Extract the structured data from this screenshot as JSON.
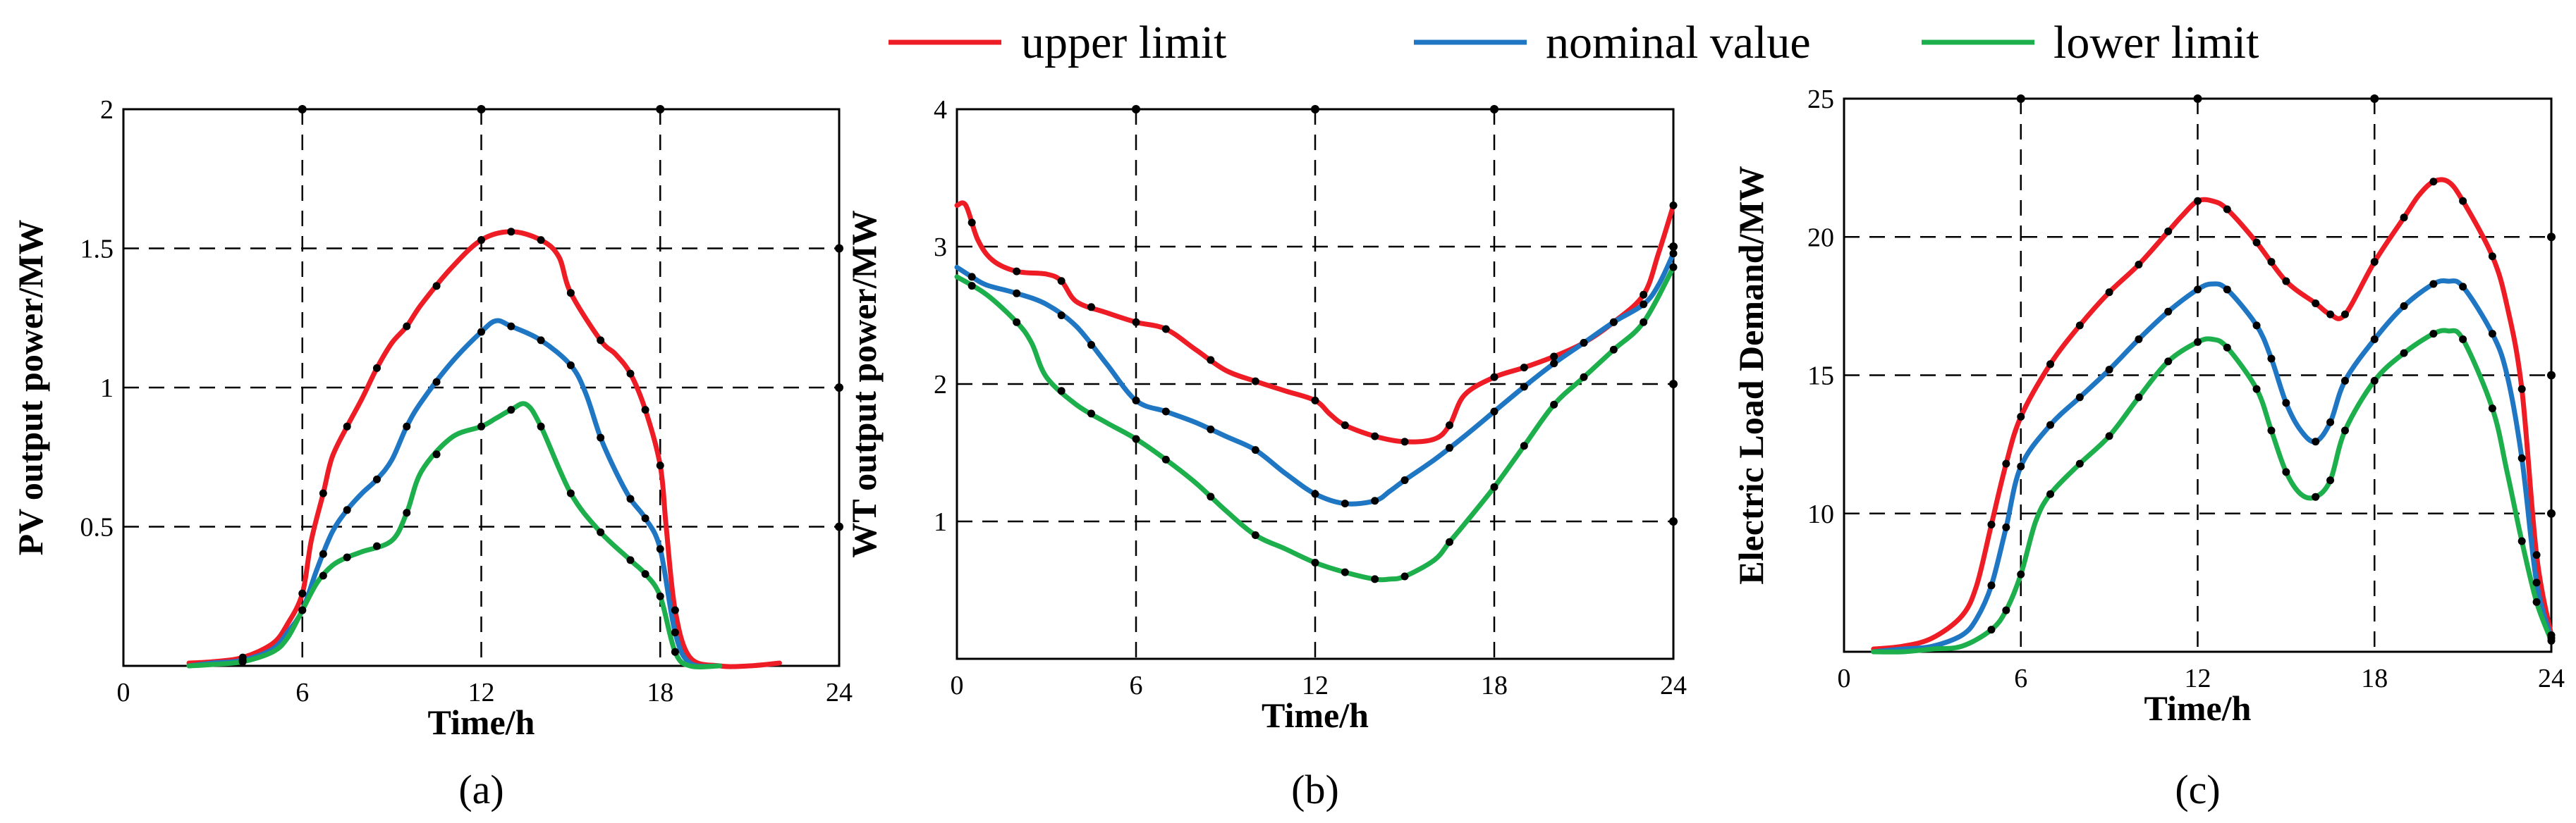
{
  "legend": [
    {
      "name": "upper limit",
      "color": "#ee1c25"
    },
    {
      "name": "nominal value",
      "color": "#1f77c4"
    },
    {
      "name": "lower limit",
      "color": "#1daf4c"
    }
  ],
  "chart_data": [
    {
      "type": "line",
      "panel_label": "(a)",
      "xlabel": "Time/h",
      "ylabel": "PV output power/MW",
      "xlim": [
        0,
        24
      ],
      "ylim": [
        0,
        2
      ],
      "xticks": [
        0,
        6,
        12,
        18,
        24
      ],
      "yticks": [
        0.5,
        1,
        1.5,
        2
      ],
      "xtick_labels": [
        "0",
        "6",
        "12",
        "18",
        "24"
      ],
      "ytick_labels": [
        "0.5",
        "1",
        "1.5",
        "2"
      ],
      "grid": true,
      "series": [
        {
          "name": "upper limit",
          "color": "#ee1c25",
          "x": [
            2.2,
            3,
            4,
            5,
            5.5,
            6,
            6.3,
            6.7,
            7,
            7.5,
            8,
            8.5,
            9,
            9.5,
            10,
            11,
            12,
            13,
            14,
            14.6,
            15,
            16,
            16.5,
            17,
            17.5,
            18,
            18.2,
            18.5,
            19,
            20,
            21,
            22
          ],
          "y": [
            0.01,
            0.015,
            0.03,
            0.08,
            0.15,
            0.26,
            0.45,
            0.62,
            0.75,
            0.86,
            0.96,
            1.07,
            1.16,
            1.22,
            1.3,
            1.43,
            1.53,
            1.56,
            1.53,
            1.47,
            1.34,
            1.17,
            1.12,
            1.05,
            0.92,
            0.72,
            0.5,
            0.2,
            0.03,
            0.0,
            0.0,
            0.01
          ]
        },
        {
          "name": "nominal value",
          "color": "#1f77c4",
          "x": [
            2.2,
            3,
            4,
            5,
            5.5,
            6,
            6.5,
            7,
            7.5,
            8,
            8.5,
            9,
            9.5,
            10,
            11,
            12,
            12.5,
            13,
            14,
            15,
            15.5,
            16,
            16.5,
            17,
            17.5,
            18,
            18.5,
            19,
            20
          ],
          "y": [
            0.0,
            0.01,
            0.02,
            0.06,
            0.12,
            0.2,
            0.35,
            0.48,
            0.56,
            0.62,
            0.67,
            0.74,
            0.86,
            0.95,
            1.09,
            1.2,
            1.24,
            1.22,
            1.17,
            1.08,
            0.98,
            0.82,
            0.7,
            0.6,
            0.53,
            0.42,
            0.12,
            0.01,
            0.0
          ]
        },
        {
          "name": "lower limit",
          "color": "#1daf4c",
          "x": [
            2.2,
            3,
            4,
            5,
            5.5,
            6,
            6.5,
            7,
            7.5,
            8,
            9,
            9.5,
            10,
            11,
            12,
            12.5,
            13,
            13.5,
            14,
            15,
            16,
            17,
            17.5,
            18,
            18.5,
            19,
            20
          ],
          "y": [
            0.0,
            0.005,
            0.015,
            0.05,
            0.1,
            0.2,
            0.3,
            0.36,
            0.39,
            0.41,
            0.45,
            0.55,
            0.7,
            0.82,
            0.86,
            0.89,
            0.92,
            0.94,
            0.86,
            0.62,
            0.48,
            0.38,
            0.33,
            0.25,
            0.05,
            0.0,
            0.0
          ]
        }
      ],
      "markers_x": [
        4,
        6,
        6.7,
        7.5,
        8.5,
        9.5,
        10.5,
        12,
        13,
        14,
        15,
        16,
        17,
        17.5,
        18,
        18.5
      ]
    },
    {
      "type": "line",
      "panel_label": "(b)",
      "xlabel": "Time/h",
      "ylabel": "WT output power/MW",
      "xlim": [
        0,
        24
      ],
      "ylim": [
        0,
        4
      ],
      "xticks": [
        0,
        6,
        12,
        18,
        24
      ],
      "yticks": [
        1,
        2,
        3,
        4
      ],
      "xtick_labels": [
        "0",
        "6",
        "12",
        "18",
        "24"
      ],
      "ytick_labels": [
        "1",
        "2",
        "3",
        "4"
      ],
      "grid": true,
      "series": [
        {
          "name": "upper limit",
          "color": "#ee1c25",
          "x": [
            0,
            0.3,
            0.7,
            1.2,
            2,
            3,
            3.5,
            4,
            5,
            6,
            7,
            8,
            9,
            10,
            11,
            12,
            12.5,
            13,
            14,
            15,
            16,
            16.5,
            17,
            18,
            19,
            20,
            21,
            22,
            23,
            23.5,
            24
          ],
          "y": [
            3.3,
            3.3,
            3.05,
            2.9,
            2.82,
            2.8,
            2.75,
            2.6,
            2.52,
            2.45,
            2.4,
            2.25,
            2.1,
            2.02,
            1.95,
            1.88,
            1.78,
            1.7,
            1.62,
            1.58,
            1.6,
            1.7,
            1.92,
            2.05,
            2.12,
            2.2,
            2.3,
            2.45,
            2.65,
            2.95,
            3.3
          ]
        },
        {
          "name": "nominal value",
          "color": "#1f77c4",
          "x": [
            0,
            0.5,
            1,
            2,
            3,
            4,
            5,
            6,
            7,
            8,
            9,
            10,
            11,
            12,
            13,
            14,
            14.5,
            15,
            16,
            17,
            18,
            19,
            20,
            21,
            22,
            23,
            23.5,
            24
          ],
          "y": [
            2.85,
            2.78,
            2.72,
            2.66,
            2.58,
            2.42,
            2.15,
            1.88,
            1.8,
            1.72,
            1.62,
            1.52,
            1.35,
            1.2,
            1.13,
            1.15,
            1.22,
            1.3,
            1.45,
            1.62,
            1.8,
            1.98,
            2.15,
            2.3,
            2.45,
            2.58,
            2.72,
            2.95
          ]
        },
        {
          "name": "lower limit",
          "color": "#1daf4c",
          "x": [
            0,
            1,
            2,
            2.5,
            3,
            4,
            5,
            6,
            7,
            8,
            9,
            10,
            11,
            12,
            13,
            14,
            14.5,
            15,
            16,
            16.5,
            17,
            18,
            19,
            20,
            21,
            22,
            23,
            24
          ],
          "y": [
            2.78,
            2.65,
            2.45,
            2.3,
            2.05,
            1.85,
            1.72,
            1.6,
            1.45,
            1.28,
            1.08,
            0.9,
            0.8,
            0.7,
            0.63,
            0.58,
            0.58,
            0.6,
            0.72,
            0.85,
            0.98,
            1.25,
            1.55,
            1.85,
            2.05,
            2.25,
            2.45,
            2.85
          ]
        }
      ],
      "markers_x": [
        0.5,
        2,
        3.5,
        4.5,
        6,
        7,
        8.5,
        10,
        12,
        13,
        14,
        15,
        16.5,
        18,
        19,
        20,
        21,
        22,
        23,
        24
      ]
    },
    {
      "type": "line",
      "panel_label": "(c)",
      "xlabel": "Time/h",
      "ylabel": "Electric Load Demand/MW",
      "xlim": [
        0,
        24
      ],
      "ylim": [
        5,
        25
      ],
      "xticks": [
        0,
        6,
        12,
        18,
        24
      ],
      "yticks": [
        10,
        15,
        20,
        25
      ],
      "xtick_labels": [
        "0",
        "6",
        "12",
        "18",
        "24"
      ],
      "ytick_labels": [
        "10",
        "15",
        "20",
        "25"
      ],
      "grid": true,
      "series": [
        {
          "name": "upper limit",
          "color": "#ee1c25",
          "x": [
            1,
            2,
            3,
            4,
            4.5,
            5,
            5.5,
            6,
            7,
            8,
            9,
            10,
            11,
            11.5,
            12,
            12.5,
            13,
            14,
            15,
            16,
            16.5,
            17,
            18,
            19,
            19.5,
            20,
            20.5,
            21,
            22,
            22.5,
            23,
            23.5,
            24
          ],
          "y": [
            5.1,
            5.2,
            5.5,
            6.3,
            7.4,
            9.6,
            11.8,
            13.5,
            15.4,
            16.8,
            18.0,
            19.0,
            20.2,
            20.8,
            21.3,
            21.3,
            21.0,
            19.8,
            18.4,
            17.6,
            17.2,
            17.2,
            19.1,
            20.7,
            21.5,
            22.0,
            22.0,
            21.3,
            19.3,
            17.5,
            14.5,
            8.5,
            5.6
          ]
        },
        {
          "name": "nominal value",
          "color": "#1f77c4",
          "x": [
            1,
            2,
            3,
            4,
            4.5,
            5,
            5.5,
            6,
            7,
            8,
            9,
            10,
            11,
            12,
            12.5,
            13,
            14,
            14.5,
            15,
            15.5,
            16,
            16.5,
            17,
            18,
            19,
            20,
            20.5,
            21,
            22,
            22.5,
            23,
            23.5,
            24
          ],
          "y": [
            5.0,
            5.1,
            5.2,
            5.6,
            6.2,
            7.4,
            9.5,
            11.7,
            13.2,
            14.2,
            15.2,
            16.3,
            17.3,
            18.1,
            18.3,
            18.1,
            16.8,
            15.6,
            14.0,
            13.0,
            12.6,
            13.3,
            14.8,
            16.3,
            17.5,
            18.3,
            18.4,
            18.2,
            16.5,
            15.0,
            12.0,
            7.5,
            5.5
          ]
        },
        {
          "name": "lower limit",
          "color": "#1daf4c",
          "x": [
            1,
            2,
            3,
            4,
            5,
            5.5,
            6,
            6.5,
            7,
            8,
            9,
            10,
            11,
            12,
            12.5,
            13,
            14,
            14.5,
            15,
            15.5,
            16,
            16.5,
            17,
            18,
            19,
            20,
            20.5,
            21,
            22,
            22.5,
            23,
            23.5,
            24
          ],
          "y": [
            5.0,
            5.0,
            5.1,
            5.2,
            5.8,
            6.5,
            7.8,
            9.7,
            10.7,
            11.8,
            12.8,
            14.2,
            15.5,
            16.2,
            16.3,
            16.0,
            14.5,
            13.0,
            11.5,
            10.7,
            10.6,
            11.2,
            13.0,
            14.8,
            15.8,
            16.5,
            16.6,
            16.3,
            13.8,
            11.5,
            9.0,
            6.8,
            5.4
          ]
        }
      ],
      "markers_x": [
        5,
        5.5,
        6,
        7,
        8,
        9,
        10,
        11,
        12,
        13,
        14,
        14.5,
        15,
        16,
        16.5,
        17,
        18,
        19,
        20,
        21,
        22,
        23,
        23.5,
        24
      ]
    }
  ]
}
